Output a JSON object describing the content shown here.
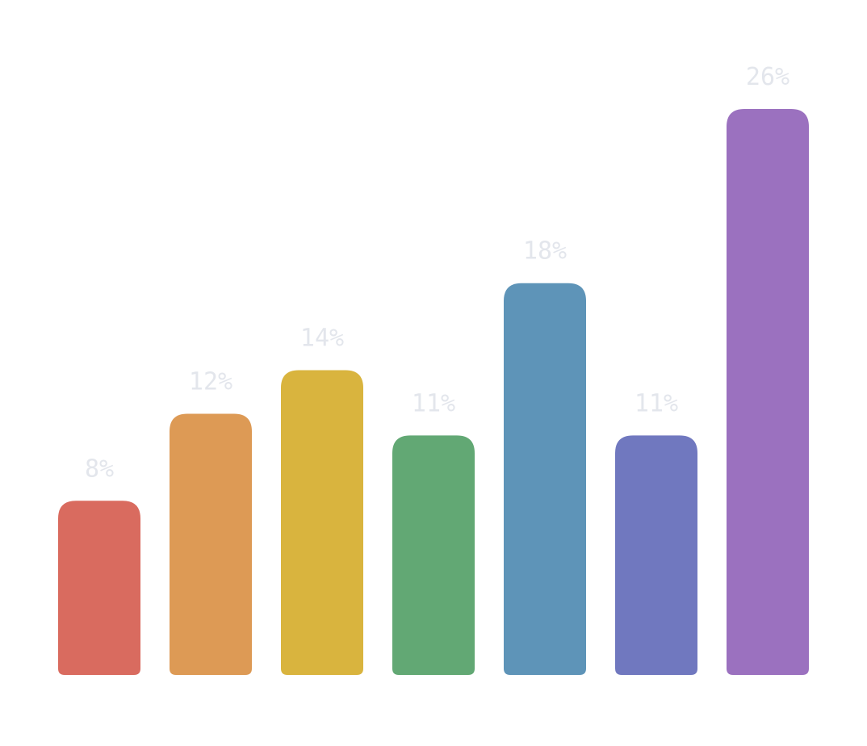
{
  "chart_data": {
    "type": "bar",
    "values": [
      8,
      12,
      14,
      11,
      18,
      11,
      26
    ],
    "value_labels": [
      "8%",
      "12%",
      "14%",
      "11%",
      "18%",
      "11%",
      "26%"
    ],
    "colors": [
      "#d96b5f",
      "#dd9a55",
      "#d9b43e",
      "#62a874",
      "#5e94b8",
      "#7078bf",
      "#9b71bf"
    ]
  }
}
